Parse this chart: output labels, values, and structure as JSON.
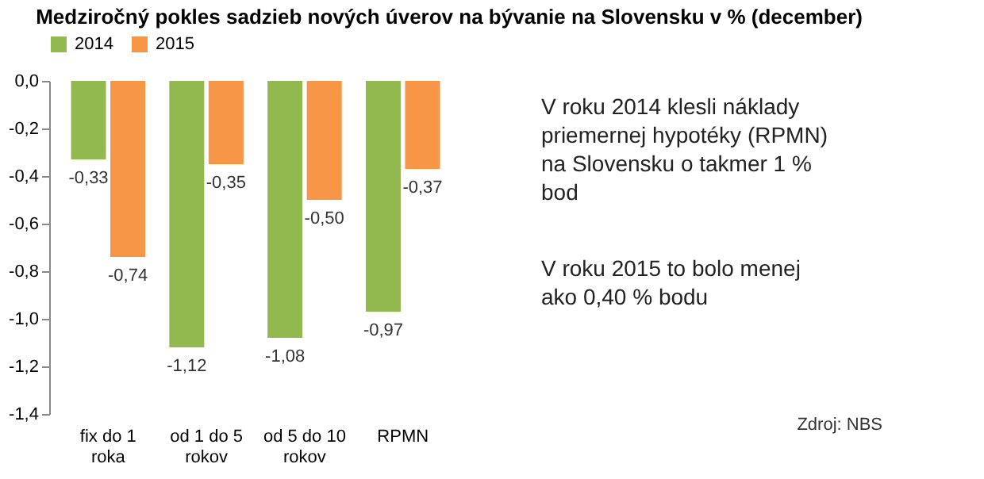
{
  "chart_data": {
    "type": "bar",
    "title": "Medziročný pokles sadzieb nových úverov na bývanie na Slovensku v % (december)",
    "categories": [
      "fix do 1 roka",
      "od 1 do 5 rokov",
      "od 5 do 10 rokov",
      "RPMN"
    ],
    "series": [
      {
        "name": "2014",
        "color": "#92b850",
        "values": [
          -0.33,
          -1.12,
          -1.08,
          -0.97
        ],
        "value_labels": [
          "-0,33",
          "-1,12",
          "-1,08",
          "-0,97"
        ]
      },
      {
        "name": "2015",
        "color": "#f79646",
        "values": [
          -0.74,
          -0.35,
          -0.5,
          -0.37
        ],
        "value_labels": [
          "-0,74",
          "-0,35",
          "-0,50",
          "-0,37"
        ]
      }
    ],
    "ylim": [
      -1.4,
      0
    ],
    "yticks": [
      {
        "value": 0,
        "label": "0,0"
      },
      {
        "value": -0.2,
        "label": "-0,2"
      },
      {
        "value": -0.4,
        "label": "-0,4"
      },
      {
        "value": -0.6,
        "label": "-0,6"
      },
      {
        "value": -0.8,
        "label": "-0,8"
      },
      {
        "value": -1.0,
        "label": "-1,0"
      },
      {
        "value": -1.2,
        "label": "-1,2"
      },
      {
        "value": -1.4,
        "label": "-1,4"
      }
    ],
    "grid": false,
    "legend": "top",
    "annotations": [
      "V roku 2014 klesli náklady priemernej hypotéky (RPMN) na Slovensku o takmer 1 % bod",
      "V roku 2015 to bolo menej ako 0,40 % bodu",
      "Zdroj: NBS"
    ]
  }
}
